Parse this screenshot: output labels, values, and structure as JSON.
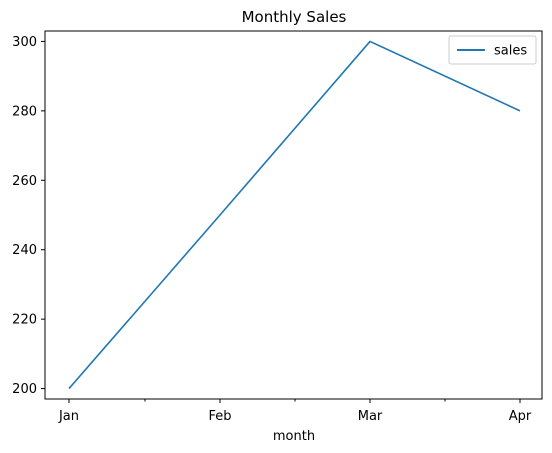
{
  "chart_data": {
    "type": "line",
    "title": "Monthly Sales",
    "xlabel": "month",
    "ylabel": "",
    "categories": [
      "Jan",
      "Feb",
      "Mar",
      "Apr"
    ],
    "series": [
      {
        "name": "sales",
        "values": [
          200,
          250,
          300,
          280
        ],
        "color": "#1f77b4"
      }
    ],
    "ylim": [
      197,
      303
    ],
    "yticks": [
      200,
      220,
      240,
      260,
      280,
      300
    ],
    "grid": false,
    "legend_position": "top-right"
  }
}
